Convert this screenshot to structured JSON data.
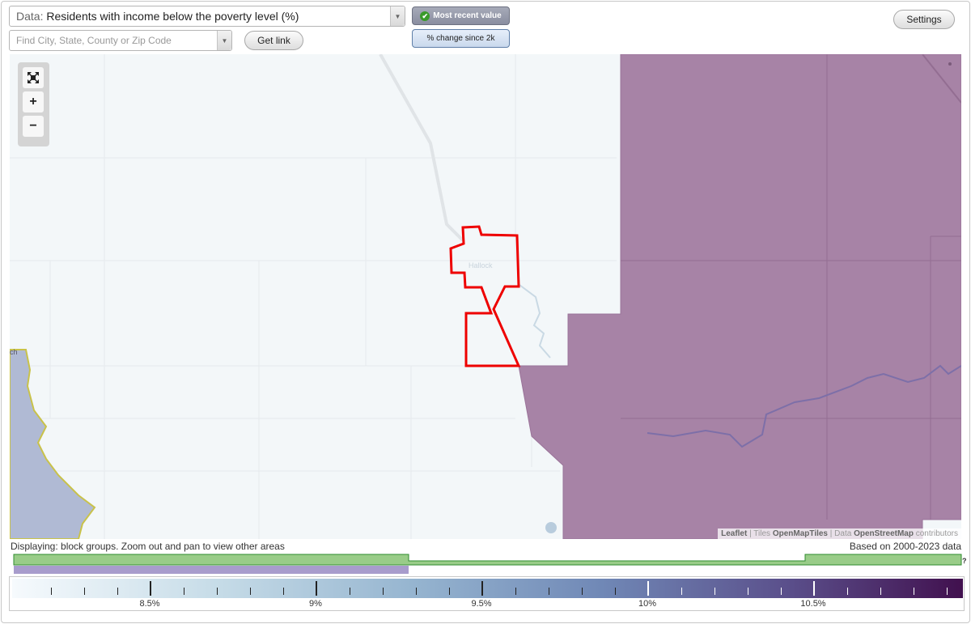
{
  "controls": {
    "data_label": "Data:",
    "data_value": "Residents with income below the poverty level (%)",
    "search_placeholder": "Find City, State, County or Zip Code",
    "get_link": "Get link",
    "mode_recent": "Most recent value",
    "mode_change": "% change since 2k",
    "settings": "Settings"
  },
  "map": {
    "place_label": "Hallock",
    "edge_label": "ch",
    "attribution": {
      "leaflet": "Leaflet",
      "sep1": " | Tiles ",
      "tiles": "OpenMapTiles",
      "sep2": " | Data ",
      "data": "OpenStreetMap",
      "tail": " contributors"
    },
    "colors": {
      "background": "#f3f7f9",
      "purple_region": "#a783a6",
      "water": "#b0bad4",
      "selected_outline": "#ee0000",
      "shore": "#c9c24a"
    }
  },
  "status": {
    "displaying": "Displaying: block groups. Zoom out and pan to view other areas",
    "based_on": "Based on 2000-2023 data"
  },
  "legend": {
    "help": "?",
    "ticks": [
      "8.5%",
      "9%",
      "9.5%",
      "10%",
      "10.5%"
    ],
    "colors": {
      "low": "#f6fafd",
      "mid": "#7088b6",
      "high": "#41104e",
      "histogram_green": "#99cc88",
      "histogram_purple": "#a89ccc"
    }
  }
}
